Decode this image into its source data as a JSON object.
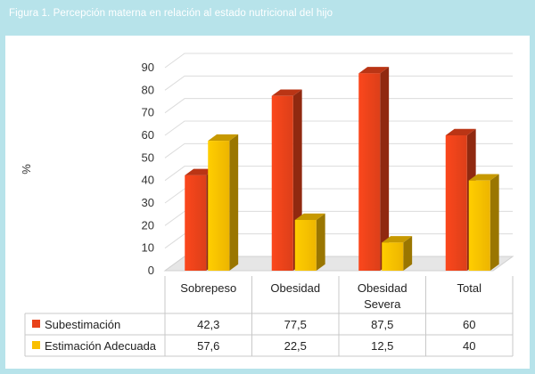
{
  "figure": {
    "title": "Figura 1. Percepción materna en relación al estado nutricional del hijo"
  },
  "chart_data": {
    "type": "bar",
    "categories": [
      "Sobrepeso",
      "Obesidad",
      "Obesidad Severa",
      "Total"
    ],
    "category_lines": [
      [
        "Sobrepeso"
      ],
      [
        "Obesidad"
      ],
      [
        "Obesidad",
        "Severa"
      ],
      [
        "Total"
      ]
    ],
    "series": [
      {
        "name": "Subestimación",
        "values": [
          42.3,
          77.5,
          87.5,
          60
        ],
        "labels": [
          "42,3",
          "77,5",
          "87,5",
          "60"
        ],
        "color": "#e8421a"
      },
      {
        "name": "Estimación Adecuada",
        "values": [
          57.6,
          22.5,
          12.5,
          40
        ],
        "labels": [
          "57,6",
          "22,5",
          "12,5",
          "40"
        ],
        "color": "#f9bf00"
      }
    ],
    "ylabel": "%",
    "ylim": [
      0,
      90
    ],
    "yticks": [
      0,
      10,
      20,
      30,
      40,
      50,
      60,
      70,
      80,
      90
    ],
    "grid": true,
    "legend": "data-table-below"
  }
}
